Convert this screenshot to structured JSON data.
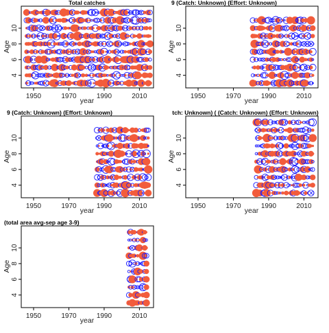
{
  "figure": {
    "background": "#ffffff"
  },
  "style": {
    "positive_color": "#f25c3c",
    "negative_color": "#1a1aff",
    "axis_color": "#000000"
  },
  "chart_data": [
    {
      "type": "scatter",
      "variant": "bubble-residuals",
      "title": "Total catches",
      "xlabel": "year",
      "ylabel": "Age",
      "xlim": [
        1943,
        2018
      ],
      "ylim": [
        2.4,
        12.8
      ],
      "xticks": [
        1950,
        1970,
        1990,
        2010
      ],
      "yticks": [
        4,
        6,
        8,
        10
      ],
      "x": [
        1946,
        2016
      ],
      "y": [
        3,
        12
      ],
      "series": []
    },
    {
      "type": "scatter",
      "variant": "bubble-residuals",
      "title": "9 (Catch: Unknown) (Effort: Unknown)",
      "xlabel": "year",
      "ylabel": "Age",
      "xlim": [
        1943,
        2018
      ],
      "ylim": [
        2.4,
        12.8
      ],
      "xticks": [
        1950,
        1970,
        1990,
        2010
      ],
      "yticks": [
        4,
        6,
        8,
        10
      ],
      "x": [
        1981,
        2015
      ],
      "y": [
        3,
        11
      ],
      "series": []
    },
    {
      "type": "scatter",
      "variant": "bubble-residuals",
      "title": "9 (Catch: Unknown) (Effort: Unknown)",
      "xlabel": "year",
      "ylabel": "Age",
      "xlim": [
        1943,
        2018
      ],
      "ylim": [
        2.4,
        12.8
      ],
      "xticks": [
        1950,
        1970,
        1990,
        2010
      ],
      "yticks": [
        4,
        6,
        8,
        10
      ],
      "x": [
        1986,
        2015
      ],
      "y": [
        3,
        11
      ],
      "series": []
    },
    {
      "type": "scatter",
      "variant": "bubble-residuals",
      "title": "tch: Unknown) ( (Catch: Unknown) (Effort: Unknown)",
      "xlabel": "year",
      "ylabel": "Age",
      "xlim": [
        1943,
        2018
      ],
      "ylim": [
        2.4,
        12.8
      ],
      "xticks": [
        1950,
        1970,
        1990,
        2010
      ],
      "yticks": [
        4,
        6,
        8,
        10
      ],
      "x": [
        1983,
        2015
      ],
      "y": [
        3,
        12
      ],
      "series": []
    },
    {
      "type": "scatter",
      "variant": "bubble-residuals",
      "title": "(total area avg-sep age 3-9)",
      "xlabel": "year",
      "ylabel": "Age",
      "xlim": [
        1943,
        2018
      ],
      "ylim": [
        2.4,
        12.8
      ],
      "xticks": [
        1950,
        1970,
        1990,
        2010
      ],
      "yticks": [
        4,
        6,
        8,
        10
      ],
      "x": [
        2004,
        2014
      ],
      "y": [
        3,
        12
      ],
      "series": []
    }
  ]
}
